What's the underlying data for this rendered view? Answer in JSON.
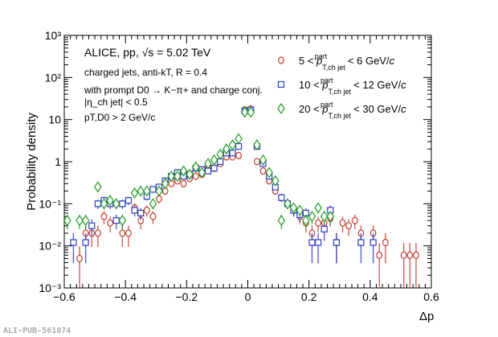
{
  "chart_data": {
    "type": "scatter",
    "title": "ALICE, pp, √s = 5.02 TeV",
    "annotations": [
      "charged jets, anti-kT, R = 0.4",
      "with prompt D0 → K−π+ and charge conj.",
      "|η_ch jet| < 0.5",
      "pT,D0 > 2 GeV/c"
    ],
    "xlabel": "Δp",
    "ylabel": "Probability density",
    "xlim": [
      -0.6,
      0.6
    ],
    "ylim": [
      0.001,
      1000
    ],
    "yscale": "log",
    "xticks": [
      "−0.6",
      "−0.4",
      "−0.2",
      "0",
      "0.2",
      "0.4",
      "0.6"
    ],
    "yticks": [
      "10⁻³",
      "10⁻²",
      "10⁻¹",
      "1",
      "10",
      "10²",
      "10³"
    ],
    "legend_placement": "top-right",
    "watermark": "ALI-PUB-561074",
    "series": [
      {
        "name": "5 < pT,ch jet part < 6 GeV/c",
        "marker": "circle",
        "color": "#c0392b",
        "x": [
          -0.55,
          -0.53,
          -0.51,
          -0.49,
          -0.47,
          -0.45,
          -0.43,
          -0.41,
          -0.39,
          -0.37,
          -0.35,
          -0.33,
          -0.31,
          -0.29,
          -0.27,
          -0.25,
          -0.23,
          -0.21,
          -0.19,
          -0.17,
          -0.15,
          -0.13,
          -0.11,
          -0.09,
          -0.07,
          -0.05,
          -0.03,
          -0.01,
          0.01,
          0.03,
          0.05,
          0.07,
          0.09,
          0.11,
          0.13,
          0.15,
          0.17,
          0.19,
          0.21,
          0.23,
          0.25,
          0.27,
          0.29,
          0.31,
          0.33,
          0.35,
          0.37,
          0.41,
          0.43,
          0.45,
          0.51,
          0.53,
          0.55
        ],
        "y": [
          0.005,
          0.02,
          0.02,
          0.02,
          0.05,
          0.035,
          0.1,
          0.02,
          0.02,
          0.08,
          0.04,
          0.07,
          0.05,
          0.13,
          0.2,
          0.3,
          0.35,
          0.3,
          0.4,
          0.45,
          0.5,
          0.8,
          0.7,
          0.9,
          1.3,
          1.3,
          1.4,
          17,
          18,
          1.0,
          0.6,
          0.35,
          0.2,
          0.14,
          0.1,
          0.07,
          0.05,
          0.035,
          0.02,
          0.035,
          0.035,
          0.045,
          0.012,
          0.035,
          0.03,
          0.04,
          0.02,
          0.02,
          0.006,
          0.012,
          0.006,
          0.006,
          0.006
        ]
      },
      {
        "name": "10 < pT,ch jet part < 12 GeV/c",
        "marker": "square",
        "color": "#2c3cc0",
        "x": [
          -0.57,
          -0.53,
          -0.51,
          -0.49,
          -0.47,
          -0.45,
          -0.43,
          -0.41,
          -0.39,
          -0.37,
          -0.35,
          -0.33,
          -0.31,
          -0.29,
          -0.27,
          -0.25,
          -0.23,
          -0.21,
          -0.19,
          -0.17,
          -0.15,
          -0.13,
          -0.11,
          -0.09,
          -0.07,
          -0.05,
          -0.03,
          -0.01,
          0.01,
          0.03,
          0.05,
          0.07,
          0.09,
          0.11,
          0.13,
          0.15,
          0.17,
          0.19,
          0.21,
          0.23,
          0.25,
          0.27,
          0.29,
          0.37,
          0.41
        ],
        "y": [
          0.012,
          0.012,
          0.03,
          0.1,
          0.12,
          0.1,
          0.04,
          0.1,
          0.12,
          0.07,
          0.06,
          0.15,
          0.22,
          0.25,
          0.35,
          0.45,
          0.55,
          0.45,
          0.5,
          0.7,
          0.65,
          0.6,
          0.7,
          1.0,
          1.6,
          1.6,
          2.3,
          16,
          17,
          2.3,
          0.9,
          0.45,
          0.25,
          0.14,
          0.1,
          0.07,
          0.055,
          0.06,
          0.012,
          0.012,
          0.025,
          0.07,
          0.012,
          0.012,
          0.012
        ]
      },
      {
        "name": "20 < pT,ch jet part < 30 GeV/c",
        "marker": "diamond",
        "color": "#1f9a1f",
        "x": [
          -0.59,
          -0.55,
          -0.53,
          -0.49,
          -0.47,
          -0.45,
          -0.43,
          -0.41,
          -0.37,
          -0.35,
          -0.33,
          -0.31,
          -0.29,
          -0.27,
          -0.25,
          -0.23,
          -0.21,
          -0.19,
          -0.17,
          -0.15,
          -0.13,
          -0.11,
          -0.09,
          -0.07,
          -0.05,
          -0.03,
          -0.01,
          0.01,
          0.03,
          0.05,
          0.07,
          0.09,
          0.11,
          0.13,
          0.15,
          0.17,
          0.19,
          0.21,
          0.23,
          0.25,
          0.27
        ],
        "y": [
          0.04,
          0.04,
          0.04,
          0.25,
          0.1,
          0.12,
          0.1,
          0.04,
          0.18,
          0.2,
          0.2,
          0.1,
          0.2,
          0.3,
          0.45,
          0.45,
          0.6,
          0.5,
          0.75,
          0.55,
          0.9,
          1.1,
          1.5,
          2.0,
          2.5,
          3.5,
          15,
          15,
          2.5,
          1.1,
          0.55,
          0.35,
          0.04,
          0.1,
          0.08,
          0.07,
          0.04,
          0.05,
          0.08,
          0.05,
          0.05
        ]
      }
    ]
  }
}
